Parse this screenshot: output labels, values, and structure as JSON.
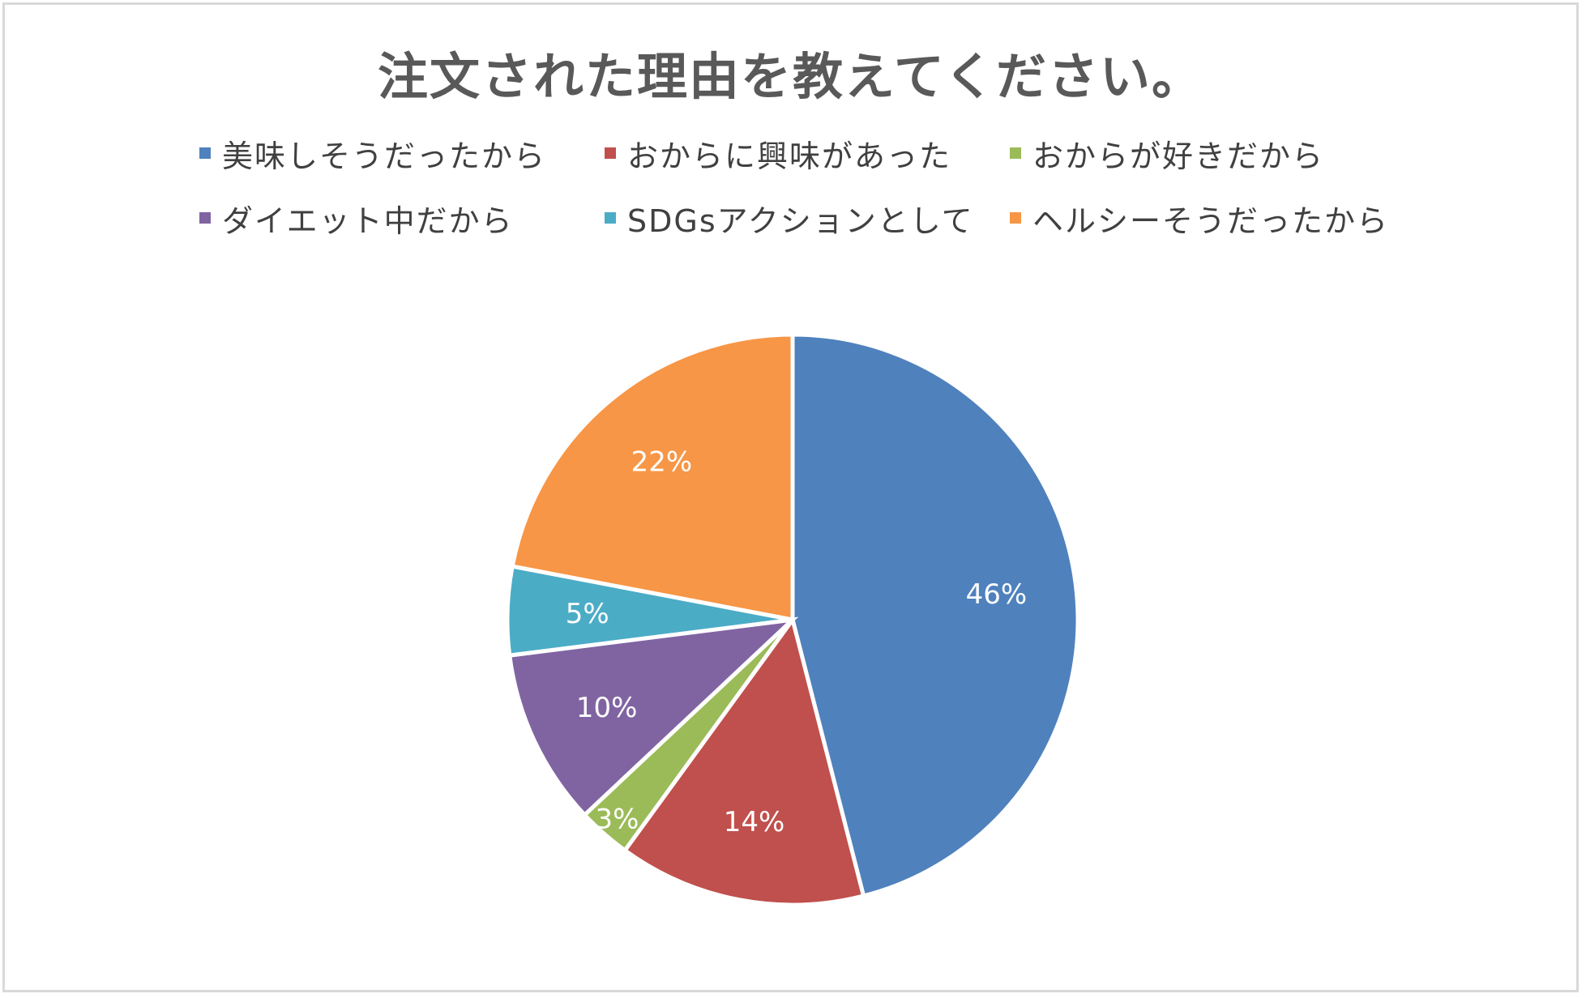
{
  "chart_data": {
    "type": "pie",
    "title": "注文された理由を教えてください。",
    "legend_position": "top",
    "categories": [
      "美味しそうだったから",
      "おからに興味があった",
      "おからが好きだから",
      "ダイエット中だから",
      "SDGsアクションとして",
      "ヘルシーそうだったから"
    ],
    "values": [
      46,
      14,
      3,
      10,
      5,
      22
    ],
    "data_labels": [
      "46%",
      "14%",
      "3%",
      "10%",
      "5%",
      "22%"
    ],
    "colors": [
      "#4F81BD",
      "#C0504D",
      "#9BBB59",
      "#8064A2",
      "#4BACC6",
      "#F79646"
    ]
  }
}
